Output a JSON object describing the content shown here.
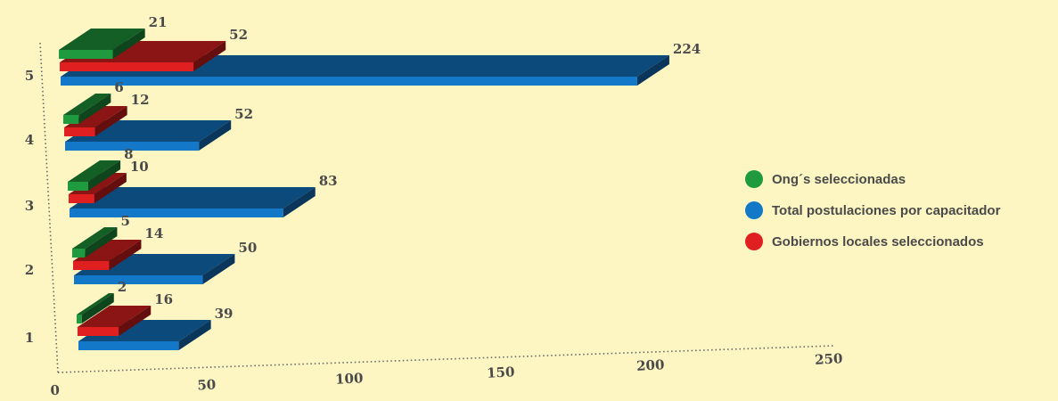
{
  "chart_data": {
    "type": "bar",
    "orientation": "horizontal-3d",
    "categories": [
      "1",
      "2",
      "3",
      "4",
      "5"
    ],
    "series": [
      {
        "name": "Ong´s seleccionadas",
        "color": "#1f9a3e",
        "values": [
          2,
          5,
          8,
          6,
          21
        ]
      },
      {
        "name": "Gobiernos locales seleccionados",
        "color": "#e02020",
        "values": [
          16,
          14,
          10,
          12,
          52
        ]
      },
      {
        "name": "Total postulaciones por capacitador",
        "color": "#1478c8",
        "values": [
          39,
          50,
          83,
          52,
          224
        ]
      }
    ],
    "x_ticks": [
      "0",
      "50",
      "100",
      "150",
      "200",
      "250"
    ],
    "xlim": [
      0,
      250
    ],
    "legend": {
      "position": "right",
      "items": [
        {
          "label": "Ong´s seleccionadas",
          "color": "#1f9a3e"
        },
        {
          "label": "Total postulaciones por capacitador",
          "color": "#1478c8"
        },
        {
          "label": "Gobiernos locales seleccionados",
          "color": "#e02020"
        }
      ]
    },
    "grid": false
  }
}
